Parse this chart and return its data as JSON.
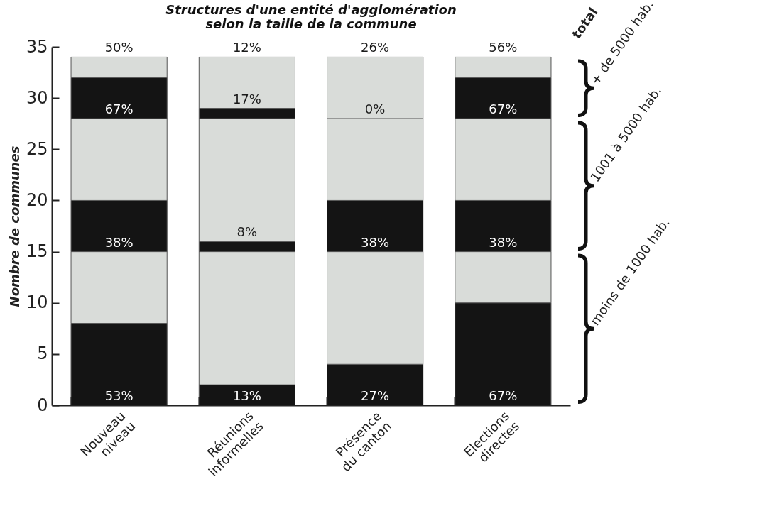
{
  "chart_data": {
    "type": "bar",
    "stacked": true,
    "title": "Structures d'une entité d'agglomération\nselon la taille de la commune",
    "ylabel": "Nombre de communes",
    "categories": [
      "Nouveau niveau",
      "Réunions informelles",
      "Présence du canton",
      "Elections directes"
    ],
    "series": [
      {
        "color": "#141414",
        "values": [
          8,
          2,
          4,
          10
        ]
      },
      {
        "color": "#d9dcd9",
        "values": [
          7,
          13,
          11,
          5
        ]
      },
      {
        "color": "#141414",
        "values": [
          5,
          1,
          5,
          5
        ]
      },
      {
        "color": "#d9dcd9",
        "values": [
          8,
          12,
          8,
          8
        ]
      },
      {
        "color": "#141414",
        "values": [
          4,
          1,
          0,
          4
        ]
      },
      {
        "color": "#d9dcd9",
        "values": [
          2,
          5,
          6,
          2
        ]
      }
    ],
    "ylim": [
      0,
      35
    ],
    "yticks": [
      0,
      5,
      10,
      15,
      20,
      25,
      30,
      35
    ],
    "grid": false,
    "legend": false,
    "annotations": [
      "total",
      "+ de 5000 hab.",
      "1001 à 5000 hab.",
      "moins de 1000 hab.",
      {
        "text": "53%",
        "x": "Nouveau niveau",
        "y": 0
      },
      {
        "text": "13%",
        "x": "Réunions informelles",
        "y": 0
      },
      {
        "text": "27%",
        "x": "Présence du canton",
        "y": 0
      },
      {
        "text": "67%",
        "x": "Elections directes",
        "y": 0
      },
      {
        "text": "38%",
        "x": "Nouveau niveau",
        "y": 15
      },
      {
        "text": "8%",
        "x": "Réunions informelles",
        "y": 16
      },
      {
        "text": "38%",
        "x": "Présence du canton",
        "y": 15
      },
      {
        "text": "38%",
        "x": "Elections directes",
        "y": 15
      },
      {
        "text": "67%",
        "x": "Nouveau niveau",
        "y": 28
      },
      {
        "text": "17%",
        "x": "Réunions informelles",
        "y": 29
      },
      {
        "text": "0%",
        "x": "Présence du canton",
        "y": 28
      },
      {
        "text": "67%",
        "x": "Elections directes",
        "y": 28
      },
      {
        "text": "50%",
        "x": "Nouveau niveau",
        "y": 34
      },
      {
        "text": "12%",
        "x": "Réunions informelles",
        "y": 34
      },
      {
        "text": "26%",
        "x": "Présence du canton",
        "y": 34
      },
      {
        "text": "56%",
        "x": "Elections directes",
        "y": 34
      }
    ]
  }
}
